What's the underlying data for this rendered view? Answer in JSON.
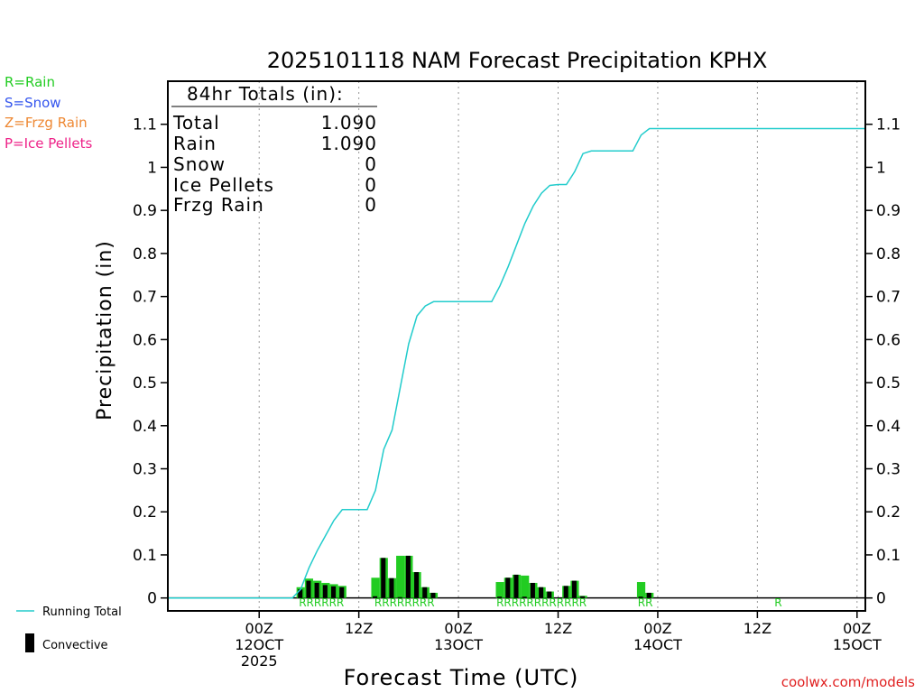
{
  "chart_data": {
    "type": "bar+line",
    "title": "2025101118 NAM Forecast Precipitation KPHX",
    "ylabel": "Precipitation (in)",
    "xlabel": "Forecast Time (UTC)",
    "credit": "coolwx.com/models",
    "ylim": [
      -0.03,
      1.2
    ],
    "xlim_hours": [
      -5,
      79
    ],
    "yticks": [
      0,
      0.1,
      0.2,
      0.3,
      0.4,
      0.5,
      0.6,
      0.7,
      0.8,
      0.9,
      1,
      1.1
    ],
    "ytick_labels": [
      "0",
      "0.1",
      "0.2",
      "0.3",
      "0.4",
      "0.5",
      "0.6",
      "0.7",
      "0.8",
      "0.9",
      "1",
      "1.1"
    ],
    "xticks": [
      {
        "hour": 6,
        "lines": [
          "00Z",
          "12OCT",
          "2025"
        ]
      },
      {
        "hour": 18,
        "lines": [
          "12Z"
        ]
      },
      {
        "hour": 30,
        "lines": [
          "00Z",
          "13OCT"
        ]
      },
      {
        "hour": 42,
        "lines": [
          "12Z"
        ]
      },
      {
        "hour": 54,
        "lines": [
          "00Z",
          "14OCT"
        ]
      },
      {
        "hour": 66,
        "lines": [
          "12Z"
        ]
      },
      {
        "hour": 78,
        "lines": [
          "00Z",
          "15OCT"
        ]
      }
    ],
    "legend_types": [
      {
        "label": "R=Rain",
        "color": "#22cc22"
      },
      {
        "label": "S=Snow",
        "color": "#3355ee"
      },
      {
        "label": "Z=Frzg Rain",
        "color": "#ee8833"
      },
      {
        "label": "P=Ice Pellets",
        "color": "#ee2288"
      }
    ],
    "legend_series": [
      {
        "label": "Running Total",
        "color": "#22cccc"
      },
      {
        "label": "Convective",
        "color": "#000000"
      }
    ],
    "totals": {
      "heading": "84hr Totals (in):",
      "rows": [
        {
          "label": "Total",
          "value": "1.090"
        },
        {
          "label": "Rain",
          "value": "1.090"
        },
        {
          "label": "Snow",
          "value": "0"
        },
        {
          "label": "Ice Pellets",
          "value": "0"
        },
        {
          "label": "Frzg Rain",
          "value": "0"
        }
      ]
    },
    "running_total": {
      "name": "Running Total",
      "color": "#22cccc",
      "points": [
        [
          -5,
          0
        ],
        [
          10,
          0
        ],
        [
          11,
          0.02
        ],
        [
          12,
          0.07
        ],
        [
          13,
          0.11
        ],
        [
          14,
          0.145
        ],
        [
          15,
          0.18
        ],
        [
          16,
          0.205
        ],
        [
          17,
          0.205
        ],
        [
          18,
          0.205
        ],
        [
          19,
          0.205
        ],
        [
          20,
          0.25
        ],
        [
          21,
          0.345
        ],
        [
          22,
          0.39
        ],
        [
          23,
          0.49
        ],
        [
          24,
          0.59
        ],
        [
          25,
          0.655
        ],
        [
          26,
          0.678
        ],
        [
          27,
          0.688
        ],
        [
          28,
          0.688
        ],
        [
          29,
          0.688
        ],
        [
          30,
          0.688
        ],
        [
          31,
          0.688
        ],
        [
          32,
          0.688
        ],
        [
          33,
          0.688
        ],
        [
          34,
          0.688
        ],
        [
          35,
          0.725
        ],
        [
          36,
          0.77
        ],
        [
          37,
          0.82
        ],
        [
          38,
          0.87
        ],
        [
          39,
          0.91
        ],
        [
          40,
          0.94
        ],
        [
          41,
          0.958
        ],
        [
          42,
          0.96
        ],
        [
          43,
          0.96
        ],
        [
          44,
          0.99
        ],
        [
          45,
          1.032
        ],
        [
          46,
          1.038
        ],
        [
          47,
          1.038
        ],
        [
          48,
          1.038
        ],
        [
          49,
          1.038
        ],
        [
          50,
          1.038
        ],
        [
          51,
          1.038
        ],
        [
          52,
          1.075
        ],
        [
          53,
          1.09
        ],
        [
          79,
          1.09
        ]
      ]
    },
    "bars": {
      "hours": [
        11,
        12,
        13,
        14,
        15,
        16,
        20,
        21,
        22,
        23,
        24,
        25,
        26,
        27,
        35,
        36,
        37,
        38,
        39,
        40,
        41,
        43,
        44,
        45,
        52,
        53
      ],
      "total": [
        0.025,
        0.045,
        0.04,
        0.035,
        0.032,
        0.028,
        0.047,
        0.093,
        0.046,
        0.098,
        0.098,
        0.06,
        0.025,
        0.012,
        0.037,
        0.047,
        0.054,
        0.052,
        0.035,
        0.025,
        0.015,
        0.028,
        0.04,
        0.005,
        0.037,
        0.012
      ],
      "convective": [
        0.02,
        0.04,
        0.035,
        0.03,
        0.027,
        0.025,
        0.004,
        0.093,
        0.046,
        0.002,
        0.098,
        0.06,
        0.025,
        0.012,
        0.003,
        0.047,
        0.054,
        0.003,
        0.035,
        0.025,
        0.015,
        0.028,
        0.04,
        0.004,
        0.003,
        0.012
      ],
      "type_labels": [
        {
          "hour": 13.5,
          "text": "RRRRRR"
        },
        {
          "hour": 23.5,
          "text": "RRRRRRRR"
        },
        {
          "hour": 40,
          "text": "RRRRRRRRRRRR"
        },
        {
          "hour": 52.5,
          "text": "RR"
        },
        {
          "hour": 68.5,
          "text": "R"
        }
      ]
    }
  }
}
